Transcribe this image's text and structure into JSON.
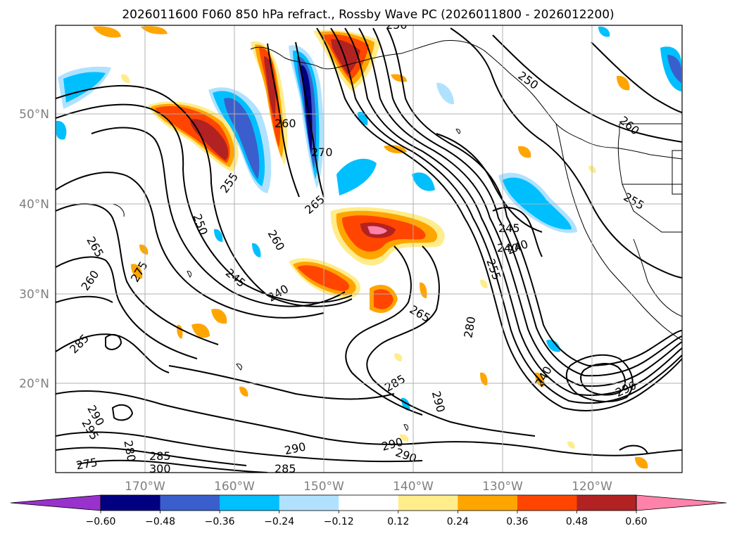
{
  "title": "2026011600 F060 850 hPa refract., Rossby Wave PC (2026011800 - 2026012200)",
  "map": {
    "lon_labels": [
      "170°W",
      "160°W",
      "150°W",
      "140°W",
      "130°W",
      "120°W"
    ],
    "lat_labels": [
      "50°N",
      "40°N",
      "30°N",
      "20°N"
    ],
    "contour_labels": [
      "250",
      "260",
      "270",
      "265",
      "255",
      "250",
      "260",
      "245",
      "240",
      "265",
      "260",
      "275",
      "285",
      "290",
      "295",
      "280",
      "285",
      "300",
      "275",
      "290",
      "285",
      "290",
      "290",
      "265",
      "280",
      "285",
      "290",
      "240",
      "245",
      "240",
      "255",
      "250",
      "260",
      "255",
      "240",
      "290"
    ]
  },
  "colorbar": {
    "labels": [
      "−0.60",
      "−0.48",
      "−0.36",
      "−0.24",
      "−0.12",
      "0.12",
      "0.24",
      "0.36",
      "0.48",
      "0.60"
    ],
    "colors": [
      "#9932cc",
      "#000080",
      "#3a5fcd",
      "#00bfff",
      "#b0e2ff",
      "#ffffff",
      "#ffec8b",
      "#ffa500",
      "#ff4500",
      "#b22222",
      "#ff82ab"
    ]
  }
}
